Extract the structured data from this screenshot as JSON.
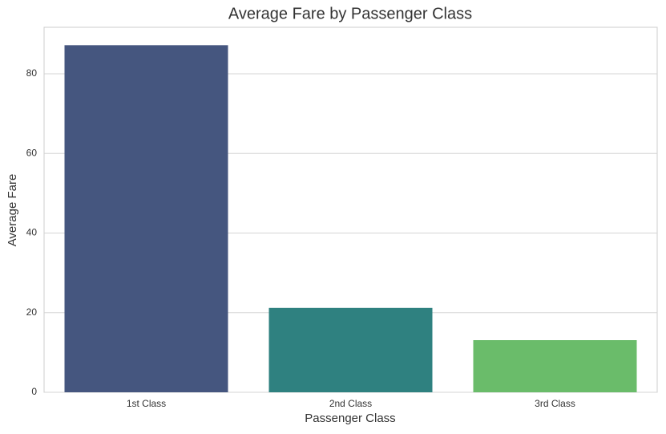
{
  "chart_data": {
    "type": "bar",
    "title": "Average Fare by Passenger Class",
    "x_label": "Passenger Class",
    "y_label": "Average Fare",
    "categories": [
      "1st Class",
      "2nd Class",
      "3rd Class"
    ],
    "values": [
      87.2,
      21.2,
      13.1
    ],
    "colors": [
      "#45567f",
      "#2f8180",
      "#6abc6a"
    ],
    "ylim": [
      0,
      91.7
    ],
    "yticks": [
      0,
      20,
      40,
      60,
      80
    ],
    "grid": true
  }
}
